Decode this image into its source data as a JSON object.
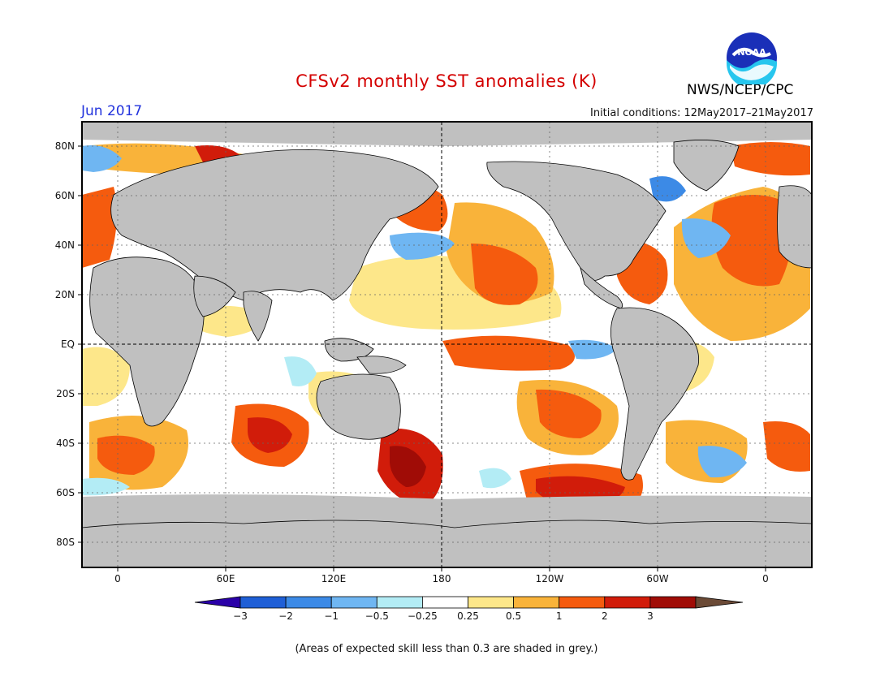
{
  "header": {
    "title": "CFSv2 monthly SST anomalies (K)",
    "period": "Jun 2017",
    "initial_conditions": "Initial conditions: 12May2017–21May2017",
    "agency": "NWS/NCEP/CPC",
    "logo_text": "NOAA"
  },
  "map": {
    "lat_labels": [
      "80N",
      "60N",
      "40N",
      "20N",
      "EQ",
      "20S",
      "40S",
      "60S",
      "80S"
    ],
    "lon_labels": [
      "0",
      "60E",
      "120E",
      "180",
      "120W",
      "60W",
      "0"
    ],
    "colors": {
      "land": "#c0c0c0",
      "grey_skill": "#c0c0c0",
      "ocean_neutral": "#ffffff"
    }
  },
  "colorbar": {
    "labels": [
      "−3",
      "−2",
      "−1",
      "−0.5",
      "−0.25",
      "0.25",
      "0.5",
      "1",
      "2",
      "3"
    ],
    "colors": [
      "#2a00a8",
      "#1f5fd6",
      "#3c8ae6",
      "#6fb6f2",
      "#b3ecf5",
      "#ffffff",
      "#fde78a",
      "#f9b33a",
      "#f55b0e",
      "#d11c0a",
      "#a00c06",
      "#6b4a36"
    ]
  },
  "footer": {
    "skill_note": "(Areas of expected skill less than 0.3 are shaded in grey.)"
  }
}
